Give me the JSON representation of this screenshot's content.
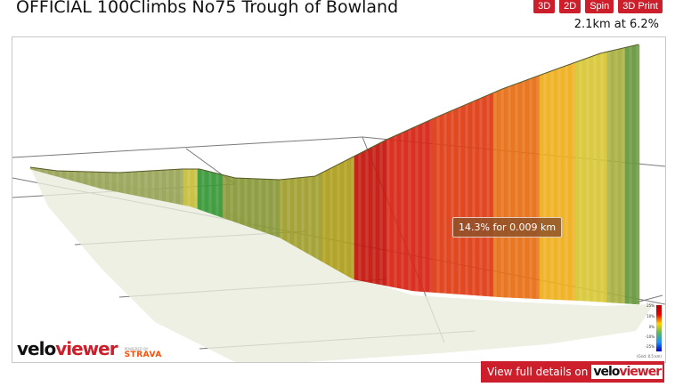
{
  "title": "OFFICIAL 100Climbs No75 Trough of Bowland",
  "buttons": [
    "3D",
    "2D",
    "Spin",
    "3D Print"
  ],
  "stats": "2.1km at 6.2%",
  "tooltip": "14.3% for 0.009 km",
  "brand": {
    "logo_part1": "velo",
    "logo_part2": "viewer",
    "powered_by": "POWERED BY",
    "strava": "STRAVA"
  },
  "legend": {
    "labels": [
      "25%",
      "10%",
      "0%",
      "-10%",
      "-25%"
    ],
    "grid_note": "(Grid: 0.5 km)"
  },
  "full_details": {
    "text": "View full details on",
    "logo_part1": "velo",
    "logo_part2": "viewer"
  },
  "colors": {
    "accent": "#cc1f2b",
    "strava": "#fc4c02"
  }
}
